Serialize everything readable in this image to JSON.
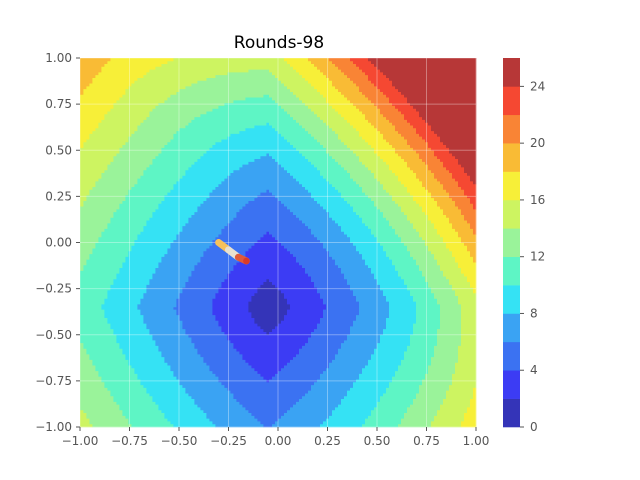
{
  "chart_data": {
    "type": "contour",
    "title": "Rounds-98",
    "xlabel": "",
    "ylabel": "",
    "xlim": [
      -1.0,
      1.0
    ],
    "ylim": [
      -1.0,
      1.0
    ],
    "grid": true,
    "x_ticks": [
      -1.0,
      -0.75,
      -0.5,
      -0.25,
      0.0,
      0.25,
      0.5,
      0.75,
      1.0
    ],
    "y_ticks": [
      -1.0,
      -0.75,
      -0.5,
      -0.25,
      0.0,
      0.25,
      0.5,
      0.75,
      1.0
    ],
    "x_tick_labels": [
      "−1.00",
      "−0.75",
      "−0.50",
      "−0.25",
      "0.00",
      "0.25",
      "0.50",
      "0.75",
      "1.00"
    ],
    "y_tick_labels": [
      "−1.00",
      "−0.75",
      "−0.50",
      "−0.25",
      "0.00",
      "0.25",
      "0.50",
      "0.75",
      "1.00"
    ],
    "contour_levels": [
      0,
      2,
      4,
      6,
      8,
      10,
      12,
      14,
      16,
      18,
      20,
      22,
      24,
      26
    ],
    "level_colors": [
      "#3434b8",
      "#3c3cf4",
      "#3b72f2",
      "#3aa3f3",
      "#35e2f4",
      "#5ef5c5",
      "#9af39a",
      "#cdf461",
      "#f7ef38",
      "#f9bb35",
      "#f98435",
      "#f54832",
      "#b73737"
    ],
    "colorbar": {
      "ticks": [
        0,
        4,
        8,
        12,
        16,
        20,
        24
      ],
      "tick_labels": [
        "0",
        "4",
        "8",
        "12",
        "16",
        "20",
        "24"
      ],
      "range": [
        0,
        26
      ]
    },
    "minimum_point": [
      -0.05,
      -0.35
    ],
    "trajectory": {
      "points": [
        [
          -0.3,
          0.0
        ],
        [
          -0.25,
          -0.04
        ],
        [
          -0.2,
          -0.08
        ],
        [
          -0.16,
          -0.1
        ]
      ],
      "colors": [
        "#f6c15a",
        "#e8e0d0",
        "#e05a3a",
        "#d93a2a"
      ]
    }
  }
}
